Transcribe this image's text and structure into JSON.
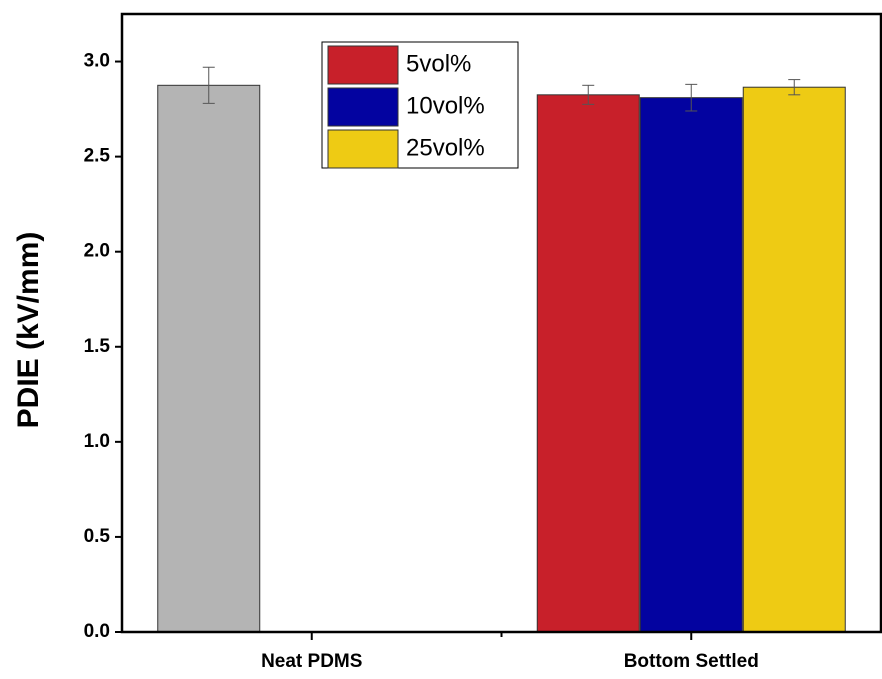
{
  "chart_data": {
    "type": "bar",
    "y_label": "PDIE (kV/mm)",
    "categories": [
      "Neat PDMS",
      "Bottom Settled"
    ],
    "series": [
      {
        "color": "#b4b4b4",
        "values": [
          2.875,
          null
        ],
        "errors": [
          0.095,
          null
        ]
      },
      {
        "name": "5vol%",
        "color": "#c8202a",
        "values": [
          null,
          2.825
        ],
        "errors": [
          null,
          0.05
        ]
      },
      {
        "name": "10vol%",
        "color": "#0303a0",
        "values": [
          null,
          2.81
        ],
        "errors": [
          null,
          0.07
        ]
      },
      {
        "name": "25vol%",
        "color": "#eecb14",
        "values": [
          null,
          2.865
        ],
        "errors": [
          null,
          0.04
        ]
      }
    ],
    "ylim": [
      0,
      3.25
    ],
    "yticks": [
      {
        "value": 0,
        "label": "0.0"
      },
      {
        "value": 0.5,
        "label": "0.5"
      },
      {
        "value": 1,
        "label": "1.0"
      },
      {
        "value": 1.5,
        "label": "1.5"
      },
      {
        "value": 2,
        "label": "2.0"
      },
      {
        "value": 2.5,
        "label": "2.5"
      },
      {
        "value": 3,
        "label": "3.0"
      }
    ],
    "legend": "top-center"
  }
}
